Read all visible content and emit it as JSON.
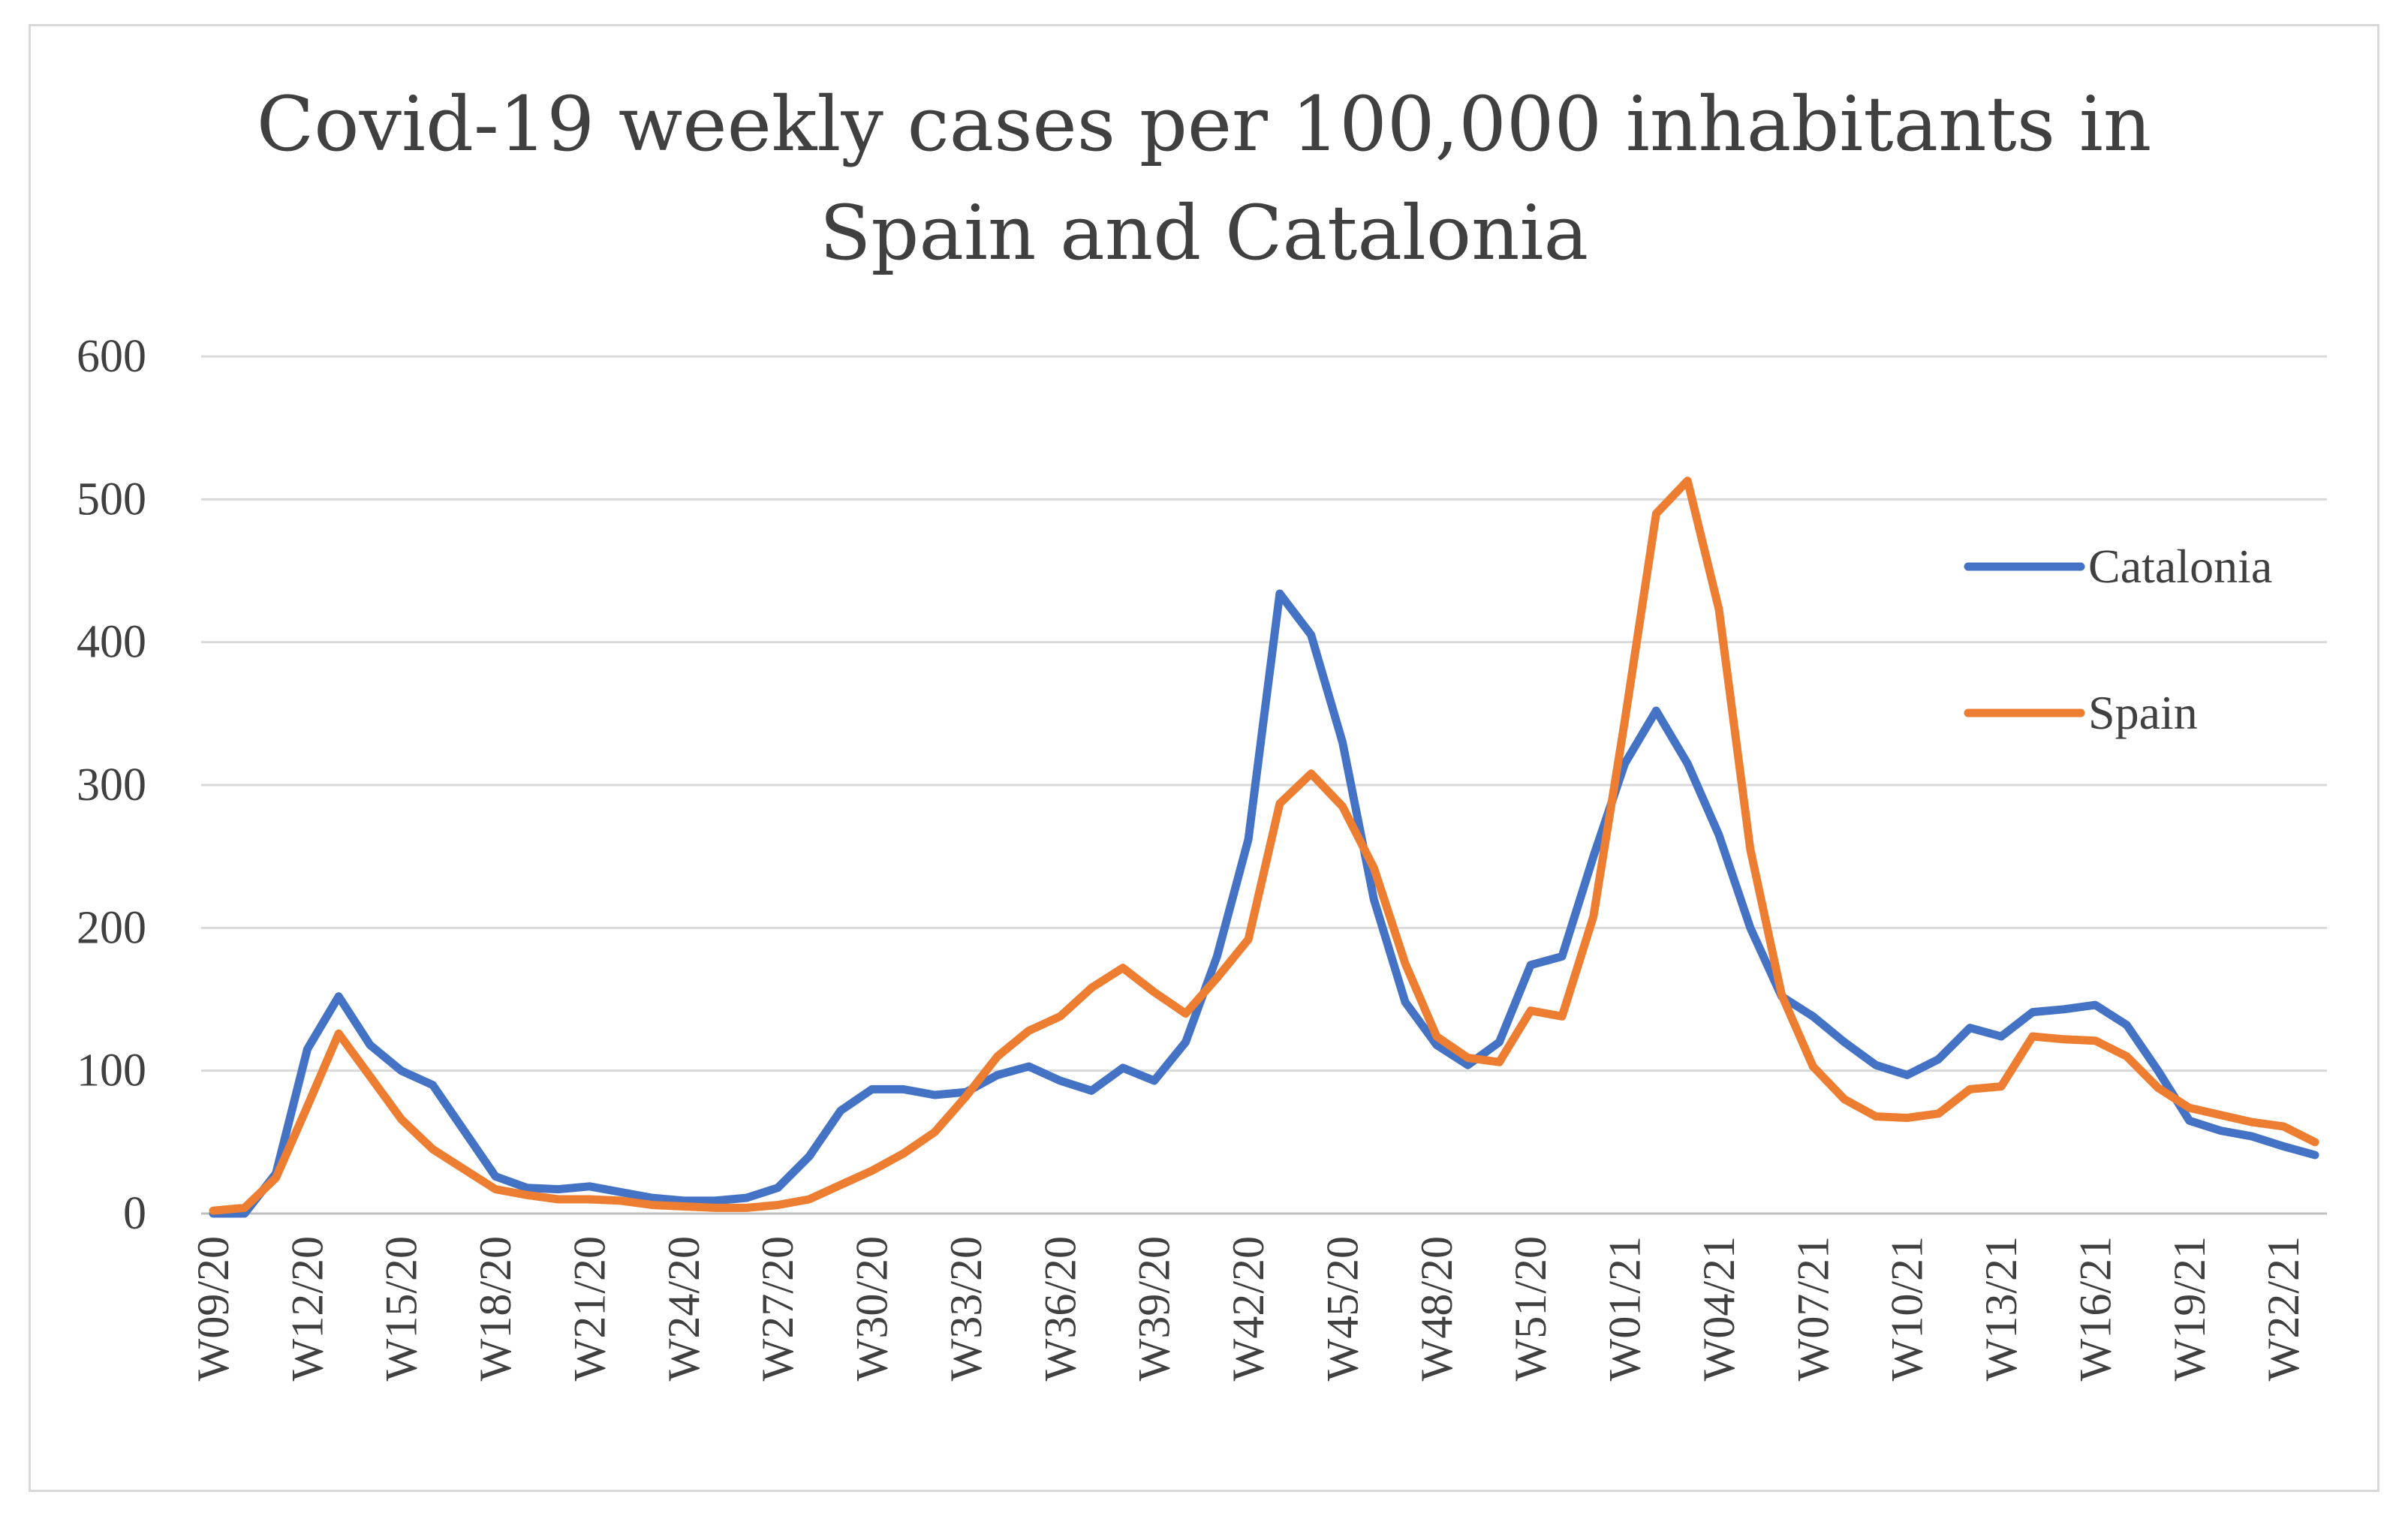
{
  "chart_data": {
    "type": "line",
    "title": [
      "Covid-19 weekly cases per 100,000 inhabitants in",
      "Spain and Catalonia"
    ],
    "xlabel": "",
    "ylabel": "",
    "ylim": [
      0,
      600
    ],
    "yticks": [
      "0",
      "100",
      "200",
      "300",
      "400",
      "500",
      "600"
    ],
    "grid": true,
    "legend_position": "right",
    "x": [
      "W09/20",
      "W10/20",
      "W11/20",
      "W12/20",
      "W13/20",
      "W14/20",
      "W15/20",
      "W16/20",
      "W17/20",
      "W18/20",
      "W19/20",
      "W20/20",
      "W21/20",
      "W22/20",
      "W23/20",
      "W24/20",
      "W25/20",
      "W26/20",
      "W27/20",
      "W28/20",
      "W29/20",
      "W30/20",
      "W31/20",
      "W32/20",
      "W33/20",
      "W34/20",
      "W35/20",
      "W36/20",
      "W37/20",
      "W38/20",
      "W39/20",
      "W40/20",
      "W41/20",
      "W42/20",
      "W43/20",
      "W44/20",
      "W45/20",
      "W46/20",
      "W47/20",
      "W48/20",
      "W49/20",
      "W50/20",
      "W51/20",
      "W52/20",
      "W53/20",
      "W01/21",
      "W02/21",
      "W03/21",
      "W04/21",
      "W05/21",
      "W06/21",
      "W07/21",
      "W08/21",
      "W09/21",
      "W10/21",
      "W11/21",
      "W12/21",
      "W13/21",
      "W14/21",
      "W15/21",
      "W16/21",
      "W17/21",
      "W18/21",
      "W19/21",
      "W20/21",
      "W21/21",
      "W22/21",
      "W23/21"
    ],
    "x_tick_labels": [
      "W09/20",
      "W12/20",
      "W15/20",
      "W18/20",
      "W21/20",
      "W24/20",
      "W27/20",
      "W30/20",
      "W33/20",
      "W36/20",
      "W39/20",
      "W42/20",
      "W45/20",
      "W48/20",
      "W51/20",
      "W01/21",
      "W04/21",
      "W07/21",
      "W10/21",
      "W13/21",
      "W16/21",
      "W19/21",
      "W22/21"
    ],
    "series": [
      {
        "name": "Catalonia",
        "color": "#4472c4",
        "values": [
          0,
          0,
          28,
          115,
          152,
          118,
          100,
          90,
          58,
          26,
          18,
          17,
          19,
          15,
          11,
          9,
          9,
          11,
          18,
          40,
          72,
          87,
          87,
          83,
          85,
          97,
          103,
          93,
          86,
          102,
          93,
          120,
          180,
          262,
          434,
          405,
          330,
          220,
          148,
          118,
          104,
          120,
          174,
          180,
          250,
          315,
          352,
          315,
          265,
          200,
          152,
          138,
          120,
          104,
          97,
          108,
          130,
          124,
          141,
          143,
          146,
          132,
          100,
          65,
          58,
          54,
          47,
          41
        ]
      },
      {
        "name": "Spain",
        "color": "#ed7d31",
        "values": [
          2,
          4,
          25,
          75,
          126,
          96,
          66,
          45,
          31,
          17,
          13,
          10,
          10,
          9,
          6,
          5,
          4,
          4,
          6,
          10,
          20,
          30,
          42,
          57,
          82,
          110,
          128,
          138,
          158,
          172,
          155,
          140,
          165,
          192,
          287,
          308,
          285,
          242,
          175,
          124,
          109,
          106,
          142,
          138,
          208,
          345,
          490,
          513,
          423,
          255,
          153,
          103,
          80,
          68,
          67,
          70,
          87,
          89,
          124,
          122,
          121,
          110,
          88,
          74,
          69,
          64,
          61,
          50
        ]
      }
    ]
  }
}
